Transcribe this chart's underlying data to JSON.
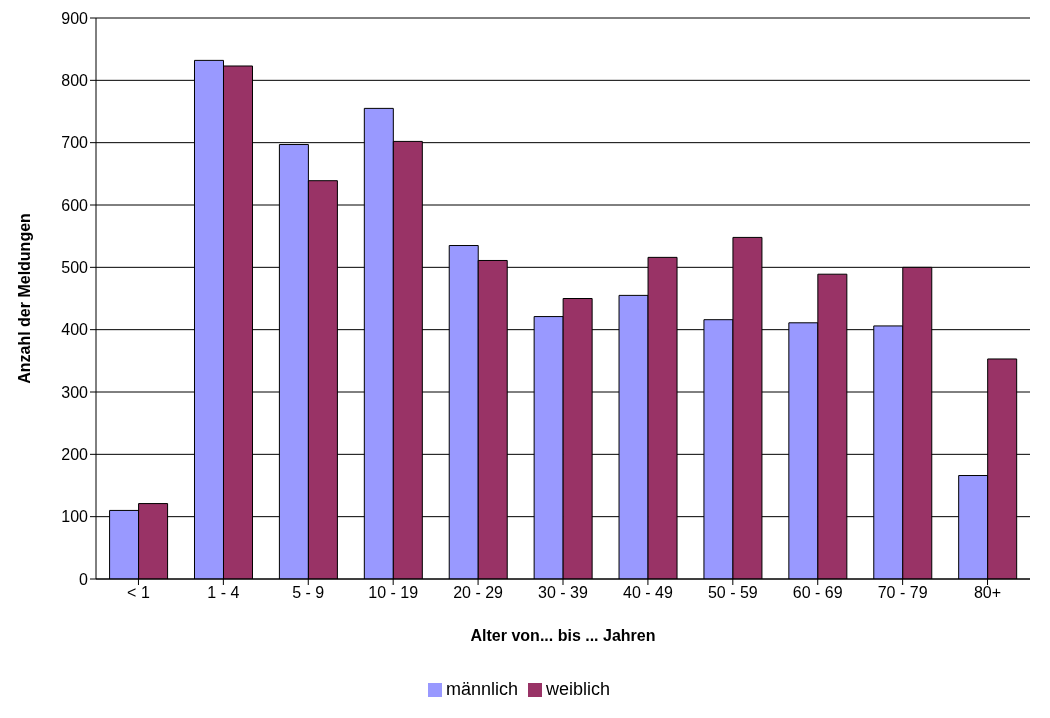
{
  "chart_data": {
    "type": "bar",
    "xlabel": "Alter von... bis ... Jahren",
    "ylabel": "Anzahl der Meldungen",
    "categories": [
      "< 1",
      "1 - 4",
      "5 - 9",
      "10 - 19",
      "20 - 29",
      "30 - 39",
      "40 - 49",
      "50 - 59",
      "60 - 69",
      "70 - 79",
      "80+"
    ],
    "series": [
      {
        "name": "männlich",
        "color": "#9999ff",
        "values": [
          110,
          832,
          697,
          755,
          535,
          421,
          455,
          416,
          411,
          406,
          166
        ]
      },
      {
        "name": "weiblich",
        "color": "#993366",
        "values": [
          121,
          823,
          639,
          702,
          511,
          450,
          516,
          548,
          489,
          500,
          353
        ]
      }
    ],
    "ylim": [
      0,
      900
    ],
    "yticks": [
      0,
      100,
      200,
      300,
      400,
      500,
      600,
      700,
      800,
      900
    ],
    "grid": "y",
    "legend": "bottom"
  }
}
